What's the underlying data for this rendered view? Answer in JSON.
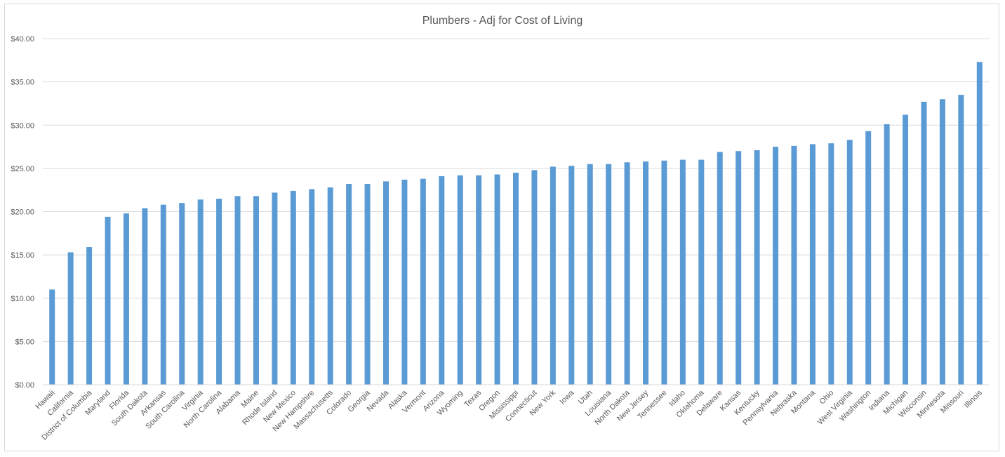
{
  "chart_data": {
    "type": "bar",
    "title": "Plumbers - Adj for Cost of Living",
    "xlabel": "",
    "ylabel": "",
    "ylim": [
      0,
      40
    ],
    "yticks": [
      0,
      5,
      10,
      15,
      20,
      25,
      30,
      35,
      40
    ],
    "ytick_labels": [
      "$0.00",
      "$5.00",
      "$10.00",
      "$15.00",
      "$20.00",
      "$25.00",
      "$30.00",
      "$35.00",
      "$40.00"
    ],
    "grid": true,
    "bar_color": "#5b9bd5",
    "categories": [
      "Hawaii",
      "California",
      "District of Columbia",
      "Maryland",
      "Florida",
      "South Dakota",
      "Arkansas",
      "South Carolina",
      "Virginia",
      "North Carolina",
      "Alabama",
      "Maine",
      "Rhode Island",
      "New Mexico",
      "New Hampshire",
      "Massachusetts",
      "Colorado",
      "Georgia",
      "Nevada",
      "Alaska",
      "Vermont",
      "Arizona",
      "Wyoming",
      "Texas",
      "Oregon",
      "Mississippi",
      "Connecticut",
      "New York",
      "Iowa",
      "Utah",
      "Louisiana",
      "North Dakota",
      "New Jersey",
      "Tennessee",
      "Idaho",
      "Oklahoma",
      "Delaware",
      "Kansas",
      "Kentucky",
      "Pennsylvania",
      "Nebraska",
      "Montana",
      "Ohio",
      "West Virginia",
      "Washington",
      "Indiana",
      "Michigan",
      "Wisconsin",
      "Minnesota",
      "Missouri",
      "Illinois"
    ],
    "values": [
      11.0,
      15.3,
      15.9,
      19.4,
      19.8,
      20.4,
      20.8,
      21.0,
      21.4,
      21.5,
      21.8,
      21.8,
      22.2,
      22.4,
      22.6,
      22.8,
      23.2,
      23.2,
      23.5,
      23.7,
      23.8,
      24.1,
      24.2,
      24.2,
      24.3,
      24.5,
      24.8,
      25.2,
      25.3,
      25.5,
      25.5,
      25.7,
      25.8,
      25.9,
      26.0,
      26.0,
      26.9,
      27.0,
      27.1,
      27.5,
      27.6,
      27.8,
      27.9,
      28.3,
      29.3,
      30.1,
      31.2,
      32.7,
      33.0,
      33.5,
      37.3
    ]
  }
}
